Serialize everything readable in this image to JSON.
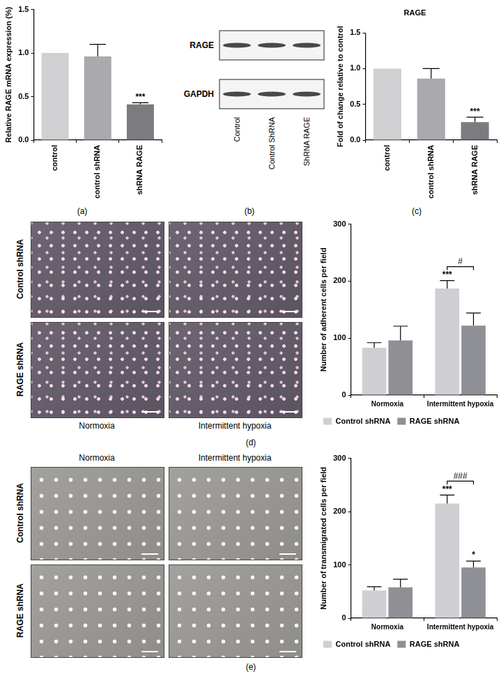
{
  "chart_data": [
    {
      "label": "(a)",
      "type": "bar",
      "categories": [
        "control",
        "control shRNA",
        "shRNA RAGE"
      ],
      "values": [
        1.0,
        0.96,
        0.41
      ],
      "errors": [
        0,
        0.14,
        0.02
      ],
      "significance": [
        null,
        null,
        "***"
      ],
      "colors": [
        "#d0d0d2",
        "#a9a9ae",
        "#7b7b80"
      ],
      "y_label": "Relative RAGE mRNA expression (%)",
      "ylim": [
        0,
        1.5
      ],
      "yticks": [
        {
          "value": 0,
          "label": "0.0"
        },
        {
          "value": 0.5,
          "label": "0.5"
        },
        {
          "value": 1,
          "label": "1.0"
        },
        {
          "value": 1.5,
          "label": "1.5"
        }
      ],
      "grid": false
    },
    {
      "label": "(c)",
      "type": "bar",
      "title": "RAGE",
      "categories": [
        "control",
        "control shRNA",
        "shRNA RAGE"
      ],
      "values": [
        1.0,
        0.86,
        0.25
      ],
      "errors": [
        0,
        0.14,
        0.07
      ],
      "significance": [
        null,
        null,
        "***"
      ],
      "colors": [
        "#d0d0d2",
        "#a9a9ae",
        "#7b7b80"
      ],
      "y_label": "Fold of change relative to control",
      "ylim": [
        0,
        1.5
      ],
      "yticks": [
        {
          "value": 0,
          "label": "0.0"
        },
        {
          "value": 0.5,
          "label": "0.5"
        },
        {
          "value": 1,
          "label": "1.0"
        },
        {
          "value": 1.5,
          "label": "1.5"
        }
      ],
      "grid": false
    },
    {
      "label": "(d)",
      "type": "bar",
      "categories": [
        "Normoxia",
        "Intermittent hypoxia"
      ],
      "series": [
        {
          "name": "Control shRNA",
          "color": "#cfcfd3",
          "values": [
            83,
            187
          ],
          "errors": [
            9,
            14
          ],
          "significance": [
            null,
            "***"
          ]
        },
        {
          "name": "RAGE shRNA",
          "color": "#8f8f96",
          "values": [
            96,
            122
          ],
          "errors": [
            25,
            22
          ]
        }
      ],
      "comparisons": [
        {
          "category": "Intermittent hypoxia",
          "label": "#"
        }
      ],
      "y_label": "Number of adherent cells per field",
      "ylim": [
        0,
        300
      ],
      "yticks": [
        0,
        100,
        200,
        300
      ],
      "legend": "bottom",
      "grid": false
    },
    {
      "label": "(e)",
      "type": "bar",
      "categories": [
        "Normoxia",
        "Intermittent hypoxia"
      ],
      "series": [
        {
          "name": "Control shRNA",
          "color": "#cfcfd3",
          "values": [
            52,
            215
          ],
          "errors": [
            7,
            16
          ],
          "significance": [
            null,
            "***"
          ]
        },
        {
          "name": "RAGE shRNA",
          "color": "#8f8f96",
          "values": [
            58,
            95
          ],
          "errors": [
            15,
            12
          ],
          "significance": [
            null,
            "*"
          ]
        }
      ],
      "comparisons": [
        {
          "category": "Intermittent hypoxia",
          "label": "###"
        }
      ],
      "y_label": "Number of transmigrated cells per field",
      "ylim": [
        0,
        300
      ],
      "yticks": [
        0,
        100,
        200,
        300
      ],
      "legend": "bottom",
      "grid": false
    }
  ],
  "blot": {
    "label": "(b)",
    "proteins": [
      "RAGE",
      "GAPDH"
    ],
    "lanes": [
      "Control",
      "Control ShRNA",
      "ShRNA RAGE"
    ]
  },
  "micrographs": [
    {
      "columns": [
        "Normoxia",
        "Intermittent hypoxia"
      ],
      "rows": [
        "Control shRNA",
        "RAGE shRNA"
      ]
    },
    {
      "columns": [
        "Normoxia",
        "Intermittent hypoxia"
      ],
      "rows": [
        "Control shRNA",
        "RAGE shRNA"
      ]
    }
  ]
}
